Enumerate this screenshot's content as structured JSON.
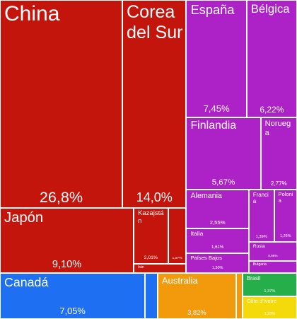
{
  "chart_data": {
    "type": "treemap",
    "categories": [
      "China",
      "Corea del Sur",
      "Japón",
      "Kazajstán",
      null,
      "Irán",
      "España",
      "Bélgica",
      "Finlandia",
      "Noruega",
      "Alemania",
      "Italia",
      "Países Bajos",
      "Francia",
      "Polonia",
      "Rusia",
      "Bulgaria",
      "Canadá",
      null,
      "Australia",
      null,
      "Brasil",
      "Côte d'Ivoire"
    ],
    "values": [
      26.8,
      14.0,
      9.1,
      2.01,
      1.07,
      0.5,
      7.45,
      6.22,
      5.67,
      2.77,
      2.55,
      1.61,
      1.3,
      1.39,
      1.26,
      0.96,
      0.6,
      7.05,
      0.6,
      3.82,
      0.3,
      1.37,
      1.28
    ],
    "value_labels": [
      "26,8%",
      "14,0%",
      "9,10%",
      "2,01%",
      "1,07%",
      null,
      "7,45%",
      "6,22%",
      "5,67%",
      "2,77%",
      "2,55%",
      "1,61%",
      "1,30%",
      "1,39%",
      "1,26%",
      "0,96%",
      null,
      "7,05%",
      null,
      "3,82%",
      null,
      "1,37%",
      "1,28%"
    ],
    "colors": [
      "#c3150c",
      "#c3150c",
      "#c3150c",
      "#c3150c",
      "#c3150c",
      "#c3150c",
      "#ad22c6",
      "#ad22c6",
      "#ad22c6",
      "#ad22c6",
      "#ad22c6",
      "#ad22c6",
      "#ad22c6",
      "#ad22c6",
      "#ad22c6",
      "#ad22c6",
      "#ad22c6",
      "#1f6ff2",
      "#1f6ff2",
      "#f39a0c",
      "#f39a0c",
      "#26ae4a",
      "#f4d90b"
    ]
  }
}
